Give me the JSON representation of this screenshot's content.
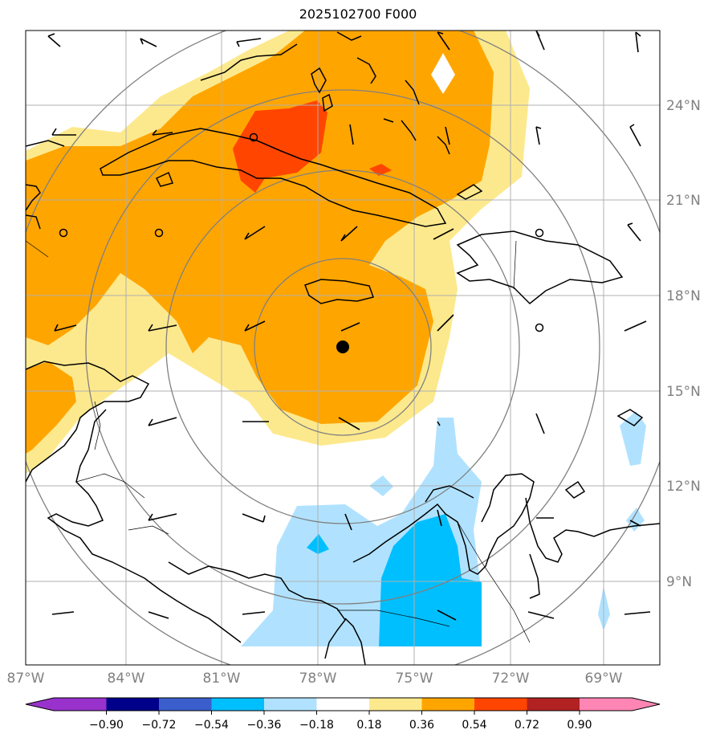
{
  "title": "2025102700 F000",
  "colors": {
    "fill_018_036": "#fde98d",
    "fill_036_054": "#ffa500",
    "fill_054_072": "#ff4500",
    "fill_neg036_neg018": "#b0e2ff",
    "fill_neg054_neg036": "#00bfff",
    "coast": "#000000",
    "grid": "#b0b0b0",
    "range_rings": "#808080"
  },
  "map": {
    "lon_labels": [
      "87°W",
      "84°W",
      "81°W",
      "78°W",
      "75°W",
      "72°W",
      "69°W"
    ],
    "lat_labels": [
      "24°N",
      "21°N",
      "18°N",
      "15°N",
      "12°N",
      "9°N"
    ],
    "center_marker": "storm-center-dot"
  },
  "colorbar": {
    "tick_labels": [
      "−0.90",
      "−0.72",
      "−0.54",
      "−0.36",
      "−0.18",
      "0.18",
      "0.36",
      "0.54",
      "0.72",
      "0.90"
    ],
    "bin_colors": [
      "#9932cc",
      "#00008b",
      "#3a5fcd",
      "#00bfff",
      "#b0e2ff",
      "#ffffff",
      "#fde98d",
      "#ffa500",
      "#ff4500",
      "#b22222",
      "#ff86b4",
      "#ff86b4"
    ]
  }
}
